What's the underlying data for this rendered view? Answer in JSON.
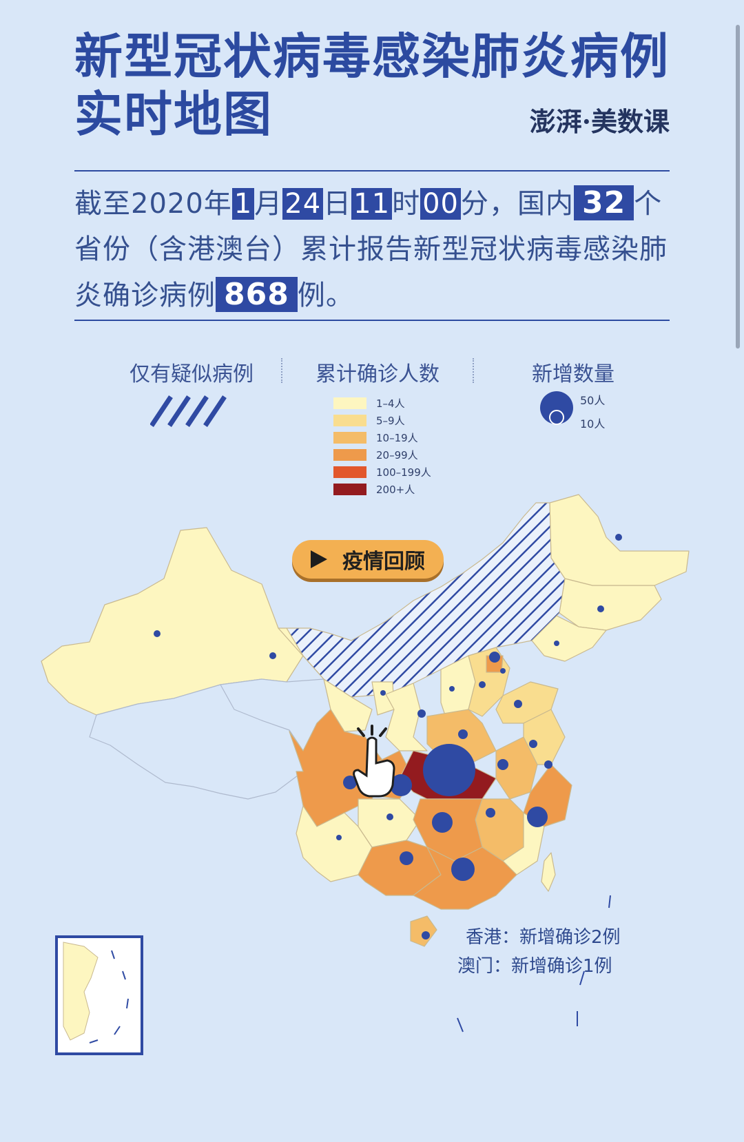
{
  "header": {
    "title_line1": "新型冠状病毒感染肺炎病例",
    "title_line2": "实时地图",
    "brand": "澎湃·美数课"
  },
  "summary": {
    "prefix": "截至2020年",
    "month": "1",
    "month_unit": "月",
    "day": "24",
    "day_unit": "日",
    "hour": "11",
    "hour_unit": "时",
    "minute": "00",
    "minute_unit": "分，国内",
    "province_count": "32",
    "middle": "个省份（含港澳台）累计报告新型冠状病毒感染肺炎确诊病例",
    "case_count": "868",
    "suffix": "例。"
  },
  "legend": {
    "suspected_title": "仅有疑似病例",
    "cumulative_title": "累计确诊人数",
    "new_title": "新增数量",
    "scale": [
      {
        "label": "1–4人",
        "color": "#fdf6c0"
      },
      {
        "label": "5–9人",
        "color": "#f9dd8f"
      },
      {
        "label": "10–19人",
        "color": "#f4bc68"
      },
      {
        "label": "20–99人",
        "color": "#ee9a4b"
      },
      {
        "label": "100–199人",
        "color": "#e2572c"
      },
      {
        "label": "200+人",
        "color": "#931b1f"
      }
    ],
    "bubble_large": "50人",
    "bubble_small": "10人"
  },
  "review_button": {
    "label": "疫情回顾",
    "icon": "play-icon"
  },
  "notes": {
    "hongkong": "香港：新增确诊2例",
    "macau": "澳门：新增确诊1例"
  },
  "colors": {
    "accent": "#2f4aa3",
    "background": "#d9e7f8",
    "hatch": "#2f4aa3",
    "no_data": "#d9e7f8"
  }
}
